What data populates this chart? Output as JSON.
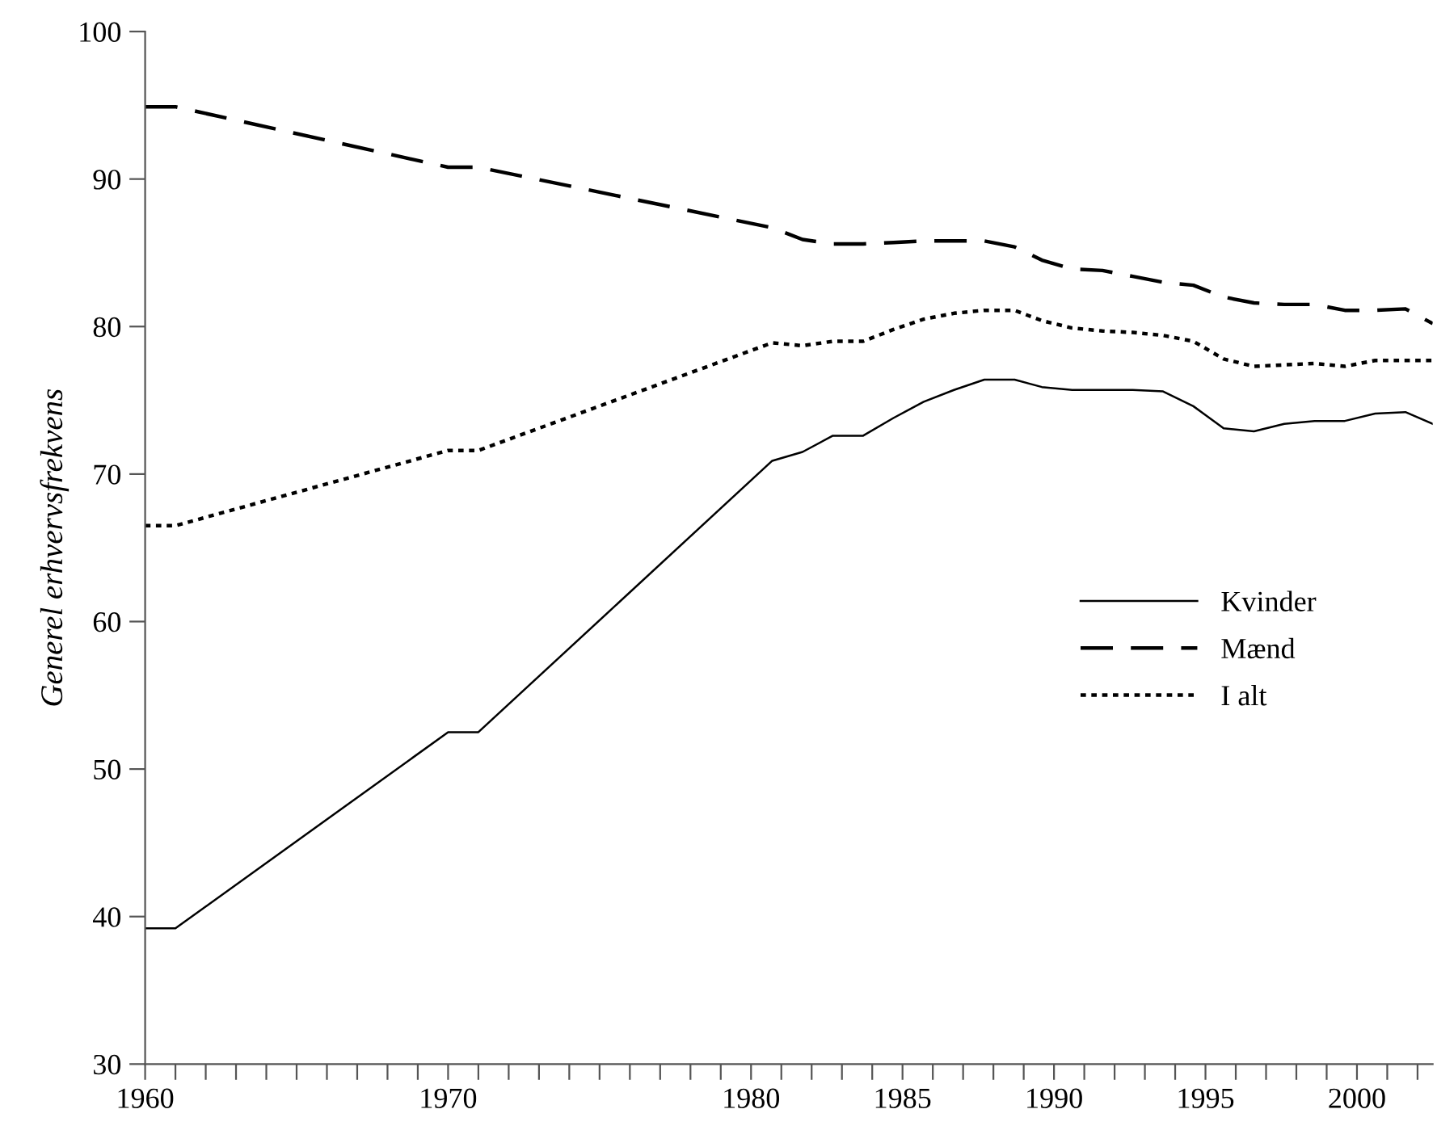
{
  "chart_data": {
    "type": "line",
    "ylabel": "Generel erhvervsfrekvens",
    "x": [
      1960,
      1961,
      1970,
      1971,
      1980.7,
      1981.7,
      1982.7,
      1983.7,
      1984.7,
      1985.7,
      1986.7,
      1987.7,
      1988.7,
      1989.6,
      1990.6,
      1991.6,
      1992.6,
      1993.6,
      1994.6,
      1995.6,
      1996.6,
      1997.6,
      1998.6,
      1999.6,
      2000.6,
      2001.6,
      2002.5
    ],
    "series": [
      {
        "name": "Kvinder",
        "color": "#000000",
        "line_style": "solid",
        "values": [
          39.2,
          39.2,
          52.5,
          52.5,
          70.9,
          71.5,
          72.6,
          72.6,
          73.8,
          74.9,
          75.7,
          76.4,
          76.4,
          75.9,
          75.7,
          75.7,
          75.7,
          75.6,
          74.6,
          73.1,
          72.9,
          73.4,
          73.6,
          73.6,
          74.1,
          74.2,
          73.4
        ]
      },
      {
        "name": "Mænd",
        "color": "#000000",
        "line_style": "dashed",
        "values": [
          94.9,
          94.9,
          90.8,
          90.8,
          86.7,
          85.9,
          85.6,
          85.6,
          85.7,
          85.8,
          85.8,
          85.8,
          85.4,
          84.5,
          83.9,
          83.8,
          83.4,
          83.0,
          82.8,
          82.0,
          81.6,
          81.5,
          81.5,
          81.1,
          81.1,
          81.2,
          80.2
        ]
      },
      {
        "name": "I alt",
        "color": "#000000",
        "line_style": "dotted",
        "values": [
          66.5,
          66.5,
          71.6,
          71.6,
          78.9,
          78.7,
          79.0,
          79.0,
          79.8,
          80.5,
          80.9,
          81.1,
          81.1,
          80.4,
          79.9,
          79.7,
          79.6,
          79.4,
          79.0,
          77.8,
          77.3,
          77.4,
          77.5,
          77.3,
          77.7,
          77.7,
          77.7
        ]
      }
    ],
    "xlim": [
      1960,
      2002.5
    ],
    "ylim": [
      30,
      100
    ],
    "xticks": [
      1960,
      {
        "value": 1961,
        "label": null
      },
      {
        "value": 1962,
        "label": null
      },
      {
        "value": 1963,
        "label": null
      },
      {
        "value": 1964,
        "label": null
      },
      {
        "value": 1965,
        "label": null
      },
      {
        "value": 1966,
        "label": null
      },
      {
        "value": 1967,
        "label": null
      },
      {
        "value": 1968,
        "label": null
      },
      {
        "value": 1969,
        "label": null
      },
      1970,
      {
        "value": 1971,
        "label": null
      },
      {
        "value": 1972,
        "label": null
      },
      {
        "value": 1973,
        "label": null
      },
      {
        "value": 1974,
        "label": null
      },
      {
        "value": 1975,
        "label": null
      },
      {
        "value": 1976,
        "label": null
      },
      {
        "value": 1977,
        "label": null
      },
      {
        "value": 1978,
        "label": null
      },
      {
        "value": 1979,
        "label": null
      },
      1980,
      {
        "value": 1981,
        "label": null
      },
      {
        "value": 1982,
        "label": null
      },
      {
        "value": 1983,
        "label": null
      },
      {
        "value": 1984,
        "label": null
      },
      1985,
      {
        "value": 1986,
        "label": null
      },
      {
        "value": 1987,
        "label": null
      },
      {
        "value": 1988,
        "label": null
      },
      {
        "value": 1989,
        "label": null
      },
      1990,
      {
        "value": 1991,
        "label": null
      },
      {
        "value": 1992,
        "label": null
      },
      {
        "value": 1993,
        "label": null
      },
      {
        "value": 1994,
        "label": null
      },
      1995,
      {
        "value": 1996,
        "label": null
      },
      {
        "value": 1997,
        "label": null
      },
      {
        "value": 1998,
        "label": null
      },
      {
        "value": 1999,
        "label": null
      },
      2000,
      {
        "value": 2001,
        "label": null
      },
      {
        "value": 2002,
        "label": null
      }
    ],
    "yticks": [
      30,
      40,
      50,
      60,
      70,
      80,
      90,
      100
    ],
    "grid": false,
    "legend": "right",
    "marker": "none"
  }
}
